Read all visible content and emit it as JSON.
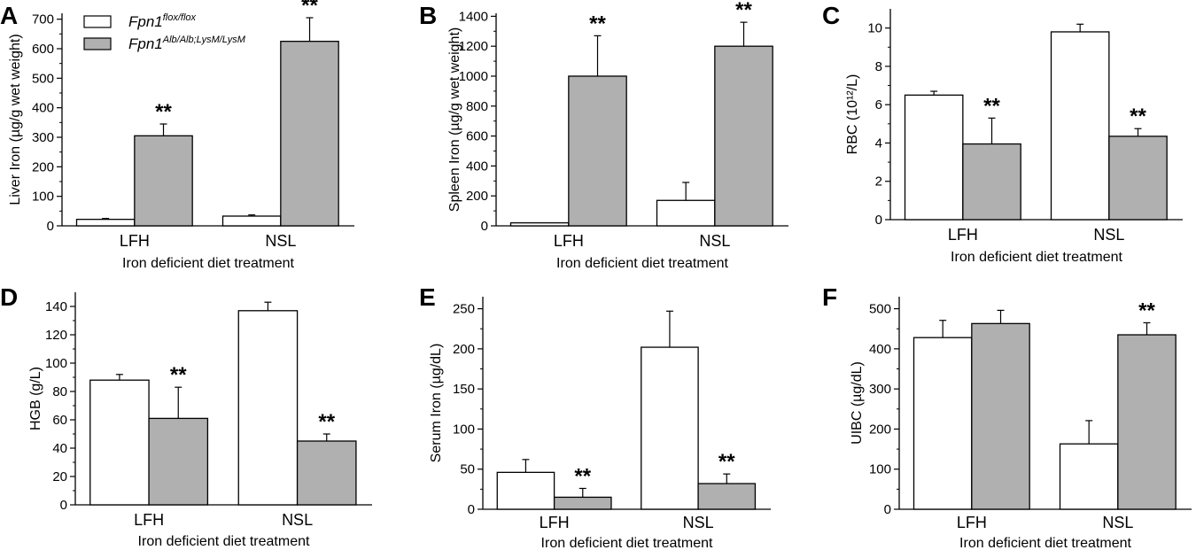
{
  "legend": {
    "entries": [
      {
        "name_base": "Fpn1",
        "name_sup": "flox/flox",
        "fill": "#ffffff"
      },
      {
        "name_base": "Fpn1",
        "name_sup": "Alb/Alb;LysM/LysM",
        "fill": "#b0b0b0"
      }
    ]
  },
  "colors": {
    "flox_fill": "#ffffff",
    "ko_fill": "#b0b0b0",
    "stroke": "#000000"
  },
  "chart_data": [
    {
      "panel": "A",
      "type": "bar",
      "categories": [
        "LFH",
        "NSL"
      ],
      "xlabel": "Iron deficient diet treatment",
      "ylabel": "Liver Iron (µg/g wet weight)",
      "ylim": [
        0,
        720
      ],
      "yticks": [
        0,
        100,
        200,
        300,
        400,
        500,
        600,
        700
      ],
      "series": [
        {
          "values": [
            22,
            33
          ],
          "errors": [
            3,
            4
          ],
          "significance": [
            "",
            ""
          ]
        },
        {
          "values": [
            305,
            625
          ],
          "errors": [
            40,
            80
          ],
          "significance": [
            "**",
            "**"
          ]
        }
      ]
    },
    {
      "panel": "B",
      "type": "bar",
      "categories": [
        "LFH",
        "NSL"
      ],
      "xlabel": "Iron deficient diet treatment",
      "ylabel": "Spleen Iron (µg/g wet weight)",
      "ylim": [
        0,
        1420
      ],
      "yticks": [
        0,
        200,
        400,
        600,
        800,
        1000,
        1200,
        1400
      ],
      "series": [
        {
          "values": [
            20,
            170
          ],
          "errors": [
            0,
            120
          ],
          "significance": [
            "",
            ""
          ]
        },
        {
          "values": [
            1000,
            1200
          ],
          "errors": [
            270,
            160
          ],
          "significance": [
            "**",
            "**"
          ]
        }
      ]
    },
    {
      "panel": "C",
      "type": "bar",
      "categories": [
        "LFH",
        "NSL"
      ],
      "xlabel": "Iron deficient diet treatment",
      "ylabel": "RBC (10¹²/L)",
      "ylim": [
        0,
        11
      ],
      "yticks": [
        0,
        2,
        4,
        6,
        8,
        10
      ],
      "series": [
        {
          "values": [
            6.5,
            9.8
          ],
          "errors": [
            0.2,
            0.4
          ],
          "significance": [
            "",
            ""
          ]
        },
        {
          "values": [
            3.95,
            4.35
          ],
          "errors": [
            1.35,
            0.4
          ],
          "significance": [
            "**",
            "**"
          ]
        }
      ]
    },
    {
      "panel": "D",
      "type": "bar",
      "categories": [
        "LFH",
        "NSL"
      ],
      "xlabel": "Iron deficient diet treatment",
      "ylabel": "HGB (g/L)",
      "ylim": [
        0,
        150
      ],
      "yticks": [
        0,
        20,
        40,
        60,
        80,
        100,
        120,
        140
      ],
      "series": [
        {
          "values": [
            88,
            137
          ],
          "errors": [
            4,
            6
          ],
          "significance": [
            "",
            ""
          ]
        },
        {
          "values": [
            61,
            45
          ],
          "errors": [
            22,
            5
          ],
          "significance": [
            "**",
            "**"
          ]
        }
      ]
    },
    {
      "panel": "E",
      "type": "bar",
      "categories": [
        "LFH",
        "NSL"
      ],
      "xlabel": "Iron deficient diet treatment",
      "ylabel": "Serum Iron (µg/dL)",
      "ylim": [
        0,
        265
      ],
      "yticks": [
        0,
        50,
        100,
        150,
        200,
        250
      ],
      "series": [
        {
          "values": [
            46,
            202
          ],
          "errors": [
            16,
            45
          ],
          "significance": [
            "",
            ""
          ]
        },
        {
          "values": [
            15,
            32
          ],
          "errors": [
            11,
            12
          ],
          "significance": [
            "**",
            "**"
          ]
        }
      ]
    },
    {
      "panel": "F",
      "type": "bar",
      "categories": [
        "LFH",
        "NSL"
      ],
      "xlabel": "Iron deficient diet treatment",
      "ylabel": "UIBC (µg/dL)",
      "ylim": [
        0,
        530
      ],
      "yticks": [
        0,
        100,
        200,
        300,
        400,
        500
      ],
      "series": [
        {
          "values": [
            428,
            163
          ],
          "errors": [
            43,
            58
          ],
          "significance": [
            "",
            ""
          ]
        },
        {
          "values": [
            463,
            435
          ],
          "errors": [
            33,
            30
          ],
          "significance": [
            "",
            "**"
          ]
        }
      ]
    }
  ]
}
